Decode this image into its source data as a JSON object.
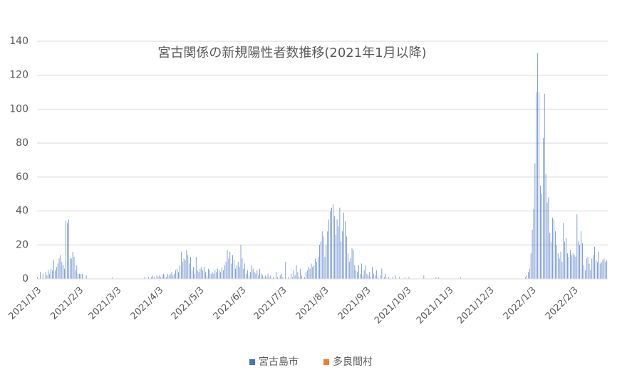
{
  "chart_data": {
    "type": "bar",
    "title": "宮古関係の新規陽性者数推移(2021年1月以降)",
    "categories": [
      "2021/1/3",
      null,
      null,
      null,
      null,
      null,
      null,
      null,
      null,
      null,
      null,
      null,
      null,
      null,
      null,
      null,
      null,
      null,
      null,
      null,
      null,
      null,
      null,
      null,
      null,
      null,
      null,
      null,
      null,
      null,
      null,
      "2021/2/3",
      null,
      null,
      null,
      null,
      null,
      null,
      null,
      null,
      null,
      null,
      null,
      null,
      null,
      null,
      null,
      null,
      null,
      null,
      null,
      null,
      null,
      null,
      null,
      null,
      null,
      null,
      null,
      "2021/3/3",
      null,
      null,
      null,
      null,
      null,
      null,
      null,
      null,
      null,
      null,
      null,
      null,
      null,
      null,
      null,
      null,
      null,
      null,
      null,
      null,
      null,
      null,
      null,
      null,
      null,
      null,
      null,
      null,
      null,
      null,
      "2021/4/3",
      null,
      null,
      null,
      null,
      null,
      null,
      null,
      null,
      null,
      null,
      null,
      null,
      null,
      null,
      null,
      null,
      null,
      null,
      null,
      null,
      null,
      null,
      null,
      null,
      null,
      null,
      null,
      null,
      null,
      "2021/5/3",
      null,
      null,
      null,
      null,
      null,
      null,
      null,
      null,
      null,
      null,
      null,
      null,
      null,
      null,
      null,
      null,
      null,
      null,
      null,
      null,
      null,
      null,
      null,
      null,
      null,
      null,
      null,
      null,
      null,
      null,
      "2021/6/3",
      null,
      null,
      null,
      null,
      null,
      null,
      null,
      null,
      null,
      null,
      null,
      null,
      null,
      null,
      null,
      null,
      null,
      null,
      null,
      null,
      null,
      null,
      null,
      null,
      null,
      null,
      null,
      null,
      null,
      "2021/7/3",
      null,
      null,
      null,
      null,
      null,
      null,
      null,
      null,
      null,
      null,
      null,
      null,
      null,
      null,
      null,
      null,
      null,
      null,
      null,
      null,
      null,
      null,
      null,
      null,
      null,
      null,
      null,
      null,
      null,
      null,
      "2021/8/3",
      null,
      null,
      null,
      null,
      null,
      null,
      null,
      null,
      null,
      null,
      null,
      null,
      null,
      null,
      null,
      null,
      null,
      null,
      null,
      null,
      null,
      null,
      null,
      null,
      null,
      null,
      null,
      null,
      null,
      null,
      "2021/9/3",
      null,
      null,
      null,
      null,
      null,
      null,
      null,
      null,
      null,
      null,
      null,
      null,
      null,
      null,
      null,
      null,
      null,
      null,
      null,
      null,
      null,
      null,
      null,
      null,
      null,
      null,
      null,
      null,
      null,
      "2021/10/3",
      null,
      null,
      null,
      null,
      null,
      null,
      null,
      null,
      null,
      null,
      null,
      null,
      null,
      null,
      null,
      null,
      null,
      null,
      null,
      null,
      null,
      null,
      null,
      null,
      null,
      null,
      null,
      null,
      null,
      null,
      "2021/11/3",
      null,
      null,
      null,
      null,
      null,
      null,
      null,
      null,
      null,
      null,
      null,
      null,
      null,
      null,
      null,
      null,
      null,
      null,
      null,
      null,
      null,
      null,
      null,
      null,
      null,
      null,
      null,
      null,
      null,
      "2021/12/3",
      null,
      null,
      null,
      null,
      null,
      null,
      null,
      null,
      null,
      null,
      null,
      null,
      null,
      null,
      null,
      null,
      null,
      null,
      null,
      null,
      null,
      null,
      null,
      null,
      null,
      null,
      null,
      null,
      null,
      null,
      "2022/1/3",
      null,
      null,
      null,
      null,
      null,
      null,
      null,
      null,
      null,
      null,
      null,
      null,
      null,
      null,
      null,
      null,
      null,
      null,
      null,
      null,
      null,
      null,
      null,
      null,
      null,
      null,
      null,
      null,
      null,
      null,
      "2022/2/3",
      null,
      null,
      null,
      null,
      null,
      null,
      null,
      null,
      null,
      null,
      null,
      null,
      null,
      null,
      null,
      null,
      null,
      null,
      null,
      null,
      null,
      null,
      null,
      null
    ],
    "series": [
      {
        "name": "宮古島市",
        "color": "#4472c4",
        "values": [
          1,
          0,
          4,
          0,
          3,
          0,
          4,
          2,
          5,
          3,
          6,
          5,
          11,
          5,
          7,
          9,
          12,
          14,
          10,
          8,
          6,
          34,
          33,
          35,
          12,
          12,
          16,
          13,
          5,
          8,
          3,
          3,
          3,
          3,
          0,
          0,
          2,
          0,
          0,
          0,
          0,
          0,
          0,
          0,
          0,
          0,
          0,
          0,
          0,
          0,
          0,
          0,
          0,
          0,
          0,
          1,
          0,
          0,
          0,
          0,
          0,
          0,
          0,
          0,
          0,
          0,
          0,
          0,
          0,
          0,
          0,
          0,
          0,
          0,
          0,
          0,
          0,
          0,
          0,
          1,
          0,
          0,
          1,
          0,
          1,
          2,
          1,
          0,
          2,
          1,
          2,
          1,
          2,
          3,
          2,
          1,
          3,
          2,
          3,
          4,
          2,
          3,
          5,
          6,
          4,
          8,
          16,
          10,
          12,
          11,
          17,
          14,
          9,
          13,
          5,
          7,
          3,
          13,
          5,
          4,
          6,
          7,
          5,
          7,
          4,
          2,
          6,
          5,
          3,
          4,
          3,
          5,
          4,
          6,
          5,
          4,
          7,
          5,
          8,
          10,
          17,
          12,
          16,
          9,
          14,
          11,
          6,
          8,
          10,
          7,
          20,
          12,
          6,
          9,
          3,
          5,
          2,
          4,
          8,
          6,
          4,
          3,
          5,
          2,
          6,
          3,
          2,
          1,
          2,
          1,
          3,
          1,
          2,
          0,
          1,
          0,
          4,
          1,
          0,
          2,
          3,
          1,
          0,
          10,
          0,
          1,
          0,
          3,
          1,
          5,
          2,
          8,
          4,
          1,
          6,
          2,
          0,
          1,
          4,
          5,
          7,
          6,
          9,
          7,
          8,
          12,
          10,
          13,
          20,
          22,
          28,
          25,
          13,
          20,
          28,
          35,
          40,
          42,
          44,
          37,
          26,
          35,
          31,
          42,
          22,
          28,
          39,
          34,
          25,
          15,
          10,
          12,
          18,
          17,
          8,
          5,
          4,
          8,
          3,
          9,
          2,
          5,
          8,
          3,
          2,
          4,
          1,
          7,
          3,
          2,
          5,
          1,
          0,
          2,
          6,
          0,
          1,
          3,
          0,
          1,
          0,
          0,
          1,
          0,
          2,
          0,
          0,
          1,
          0,
          0,
          0,
          1,
          0,
          0,
          1,
          0,
          0,
          0,
          0,
          0,
          0,
          0,
          0,
          0,
          0,
          2,
          0,
          0,
          0,
          0,
          0,
          0,
          0,
          0,
          1,
          0,
          1,
          0,
          0,
          0,
          0,
          0,
          0,
          0,
          0,
          0,
          0,
          0,
          0,
          0,
          0,
          0,
          1,
          0,
          0,
          0,
          0,
          0,
          0,
          0,
          0,
          0,
          0,
          0,
          0,
          0,
          0,
          0,
          0,
          0,
          0,
          0,
          0,
          0,
          0,
          0,
          0,
          0,
          0,
          0,
          0,
          0,
          0,
          0,
          0,
          0,
          0,
          0,
          0,
          0,
          0,
          0,
          0,
          0,
          0,
          0,
          0,
          0,
          0,
          0,
          1,
          2,
          4,
          6,
          15,
          29,
          41,
          68,
          110,
          133,
          110,
          55,
          50,
          83,
          109,
          62,
          45,
          48,
          27,
          22,
          36,
          35,
          28,
          20,
          15,
          12,
          16,
          10,
          33,
          22,
          24,
          15,
          13,
          17,
          14,
          15,
          14,
          13,
          38,
          22,
          20,
          28,
          21,
          8,
          5,
          12,
          13,
          9,
          5,
          12,
          14,
          19,
          11,
          10,
          16,
          9,
          10,
          11,
          12,
          10,
          11
        ]
      },
      {
        "name": "多良間村",
        "color": "#ed7d31",
        "values": [
          0,
          0,
          0,
          0,
          0,
          0,
          0,
          0,
          0,
          0,
          0,
          0,
          0,
          0,
          0,
          0,
          0,
          0,
          0,
          0,
          0,
          0,
          0,
          0,
          0,
          0,
          0,
          0,
          0,
          0,
          0,
          0,
          0,
          0,
          0,
          0,
          0,
          0,
          0,
          0,
          0,
          0,
          0,
          0,
          0,
          0,
          0,
          0,
          0,
          0,
          0,
          0,
          0,
          0,
          0,
          0,
          0,
          0,
          0,
          0,
          0,
          0,
          0,
          0,
          0,
          0,
          0,
          0,
          0,
          0,
          0,
          0,
          0,
          0,
          0,
          0,
          0,
          0,
          0,
          0,
          0,
          0,
          0,
          0,
          0,
          0,
          0,
          0,
          0,
          0,
          0,
          0,
          0,
          0,
          0,
          0,
          0,
          0,
          0,
          0,
          0,
          0,
          0,
          0,
          0,
          0,
          0,
          0,
          0,
          0,
          0,
          0,
          0,
          0,
          0,
          0,
          0,
          0,
          0,
          0,
          0,
          0,
          0,
          0,
          0,
          0,
          0,
          0,
          0,
          0,
          0,
          0,
          0,
          0,
          0,
          0,
          0,
          0,
          0,
          0,
          0,
          0,
          0,
          0,
          0,
          0,
          0,
          0,
          0,
          0,
          0,
          0,
          0,
          0,
          0,
          0,
          0,
          0,
          0,
          0,
          0,
          0,
          0,
          0,
          0,
          0,
          0,
          0,
          0,
          0,
          0,
          0,
          0,
          0,
          0,
          0,
          0,
          0,
          0,
          0,
          0,
          0,
          0,
          0,
          0,
          0,
          0,
          0,
          0,
          0,
          0,
          0,
          0,
          0,
          0,
          0,
          0,
          0,
          0,
          0,
          0,
          0,
          0,
          0,
          0,
          0,
          0,
          0,
          0,
          0,
          0,
          0,
          0,
          0,
          0,
          0,
          0,
          0,
          0,
          0,
          0,
          0,
          0,
          0,
          0,
          0,
          0,
          0,
          0,
          0,
          0,
          0,
          0,
          0,
          0,
          0,
          0,
          0,
          0,
          0,
          0,
          0,
          0,
          0,
          0,
          0,
          0,
          0,
          0,
          0,
          0,
          0,
          0,
          0,
          0,
          0,
          0,
          0,
          0,
          0,
          0,
          0,
          0,
          0,
          0,
          0,
          0,
          0,
          0,
          0,
          0,
          0,
          0,
          0,
          0,
          0,
          0,
          0,
          0,
          0,
          0,
          0,
          0,
          0,
          0,
          0,
          0,
          0,
          0,
          0,
          0,
          0,
          0,
          0,
          0,
          0,
          0,
          0,
          0,
          0,
          0,
          0,
          0,
          0,
          0,
          0,
          0,
          0,
          0,
          0,
          0,
          0,
          0,
          0,
          0,
          0,
          0,
          0,
          0,
          0,
          0,
          0,
          0,
          0,
          0,
          0,
          0,
          0,
          0,
          0,
          0,
          0,
          0,
          0,
          0,
          0,
          0,
          0,
          0,
          0,
          0,
          0,
          0,
          0,
          0,
          0,
          0,
          0,
          0,
          0,
          0,
          0,
          0,
          0,
          0,
          0,
          0,
          0,
          0,
          0,
          0,
          0,
          0,
          0,
          0,
          0,
          0,
          0,
          0,
          0,
          0,
          0,
          0,
          0,
          0,
          0,
          0,
          0,
          0,
          0,
          0,
          0,
          0,
          0,
          0,
          0,
          0,
          0,
          0,
          0,
          0,
          0,
          0,
          0,
          0,
          0,
          0,
          0,
          0,
          0,
          0,
          0,
          0,
          0,
          0,
          0,
          0,
          0,
          0,
          0,
          0,
          0,
          0,
          0,
          0,
          0,
          0,
          0,
          0,
          0,
          0
        ]
      }
    ],
    "ylim": [
      0,
      140
    ],
    "yticks": [
      0,
      20,
      40,
      60,
      80,
      100,
      120,
      140
    ],
    "grid": true,
    "legend": "bottom"
  }
}
